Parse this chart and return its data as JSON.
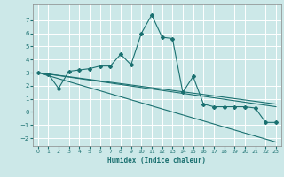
{
  "title": "",
  "xlabel": "Humidex (Indice chaleur)",
  "background_color": "#cce8e8",
  "grid_color": "#ffffff",
  "line_color": "#1a7070",
  "xlim": [
    -0.5,
    23.5
  ],
  "ylim": [
    -2.6,
    8.2
  ],
  "xticks": [
    0,
    1,
    2,
    3,
    4,
    5,
    6,
    7,
    8,
    9,
    10,
    11,
    12,
    13,
    14,
    15,
    16,
    17,
    18,
    19,
    20,
    21,
    22,
    23
  ],
  "yticks": [
    -2,
    -1,
    0,
    1,
    2,
    3,
    4,
    5,
    6,
    7
  ],
  "line1_x": [
    0,
    1,
    2,
    3,
    4,
    5,
    6,
    7,
    8,
    9,
    10,
    11,
    12,
    13,
    14,
    15,
    16,
    17,
    18,
    19,
    20,
    21,
    22,
    23
  ],
  "line1_y": [
    3.0,
    2.9,
    1.8,
    3.1,
    3.2,
    3.3,
    3.5,
    3.5,
    4.4,
    3.6,
    6.0,
    7.4,
    5.7,
    5.6,
    1.5,
    2.7,
    0.6,
    0.4,
    0.4,
    0.4,
    0.4,
    0.3,
    -0.8,
    -0.8
  ],
  "line2_x": [
    0,
    23
  ],
  "line2_y": [
    3.0,
    -2.3
  ],
  "line3_x": [
    0,
    23
  ],
  "line3_y": [
    3.0,
    0.4
  ],
  "line4_x": [
    0,
    23
  ],
  "line4_y": [
    3.0,
    0.6
  ]
}
